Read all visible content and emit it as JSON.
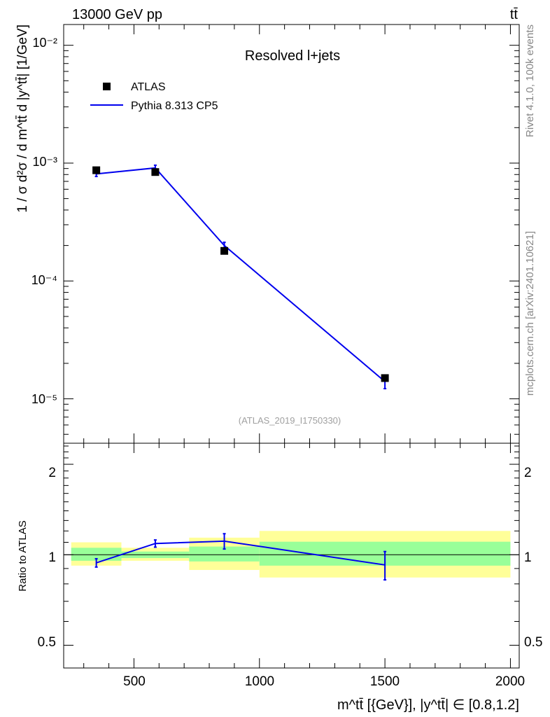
{
  "header": {
    "energy_label": "13000 GeV pp",
    "process_label": "tt̄"
  },
  "side_labels": {
    "rivet": "Rivet 4.1.0,  100k events",
    "source": "mcplots.cern.ch [arXiv:2401.10621]"
  },
  "colors": {
    "data": "#000000",
    "mc": "#0000ee",
    "band_inner": "#99ff99",
    "band_outer": "#ffff99"
  },
  "chart_data": [
    {
      "type": "scatter",
      "panel": "main",
      "title": "Resolved l+jets",
      "analysis_tag": "(ATLAS_2019_I1750330)",
      "ylabel": "1 / σ d²σ / d m^tt̄ d |y^tt̄| [1/GeV]",
      "yscale": "log",
      "ylim": [
        4.2e-06,
        0.015
      ],
      "xlim": [
        220,
        2035
      ],
      "ytick_labels": [
        "10⁻⁵",
        "10⁻⁴",
        "10⁻³",
        "10⁻²"
      ],
      "legend": {
        "placement": "top-left",
        "entries": [
          "ATLAS",
          "Pythia 8.313 CP5"
        ]
      },
      "series": [
        {
          "name": "ATLAS",
          "kind": "markers",
          "x": [
            350,
            585,
            860,
            1500
          ],
          "y": [
            0.00087,
            0.00084,
            0.00018,
            1.5e-05
          ]
        },
        {
          "name": "Pythia 8.313 CP5",
          "kind": "line",
          "x": [
            350,
            585,
            860,
            1500
          ],
          "y": [
            0.00081,
            0.00091,
            0.0002,
            1.4e-05
          ],
          "yerr": [
            4e-05,
            5e-05,
            1.3e-05,
            1.8e-06
          ]
        }
      ]
    },
    {
      "type": "line",
      "panel": "ratio",
      "ylabel": "Ratio to ATLAS",
      "xlabel": "m^tt̄ [{GeV}], |y^tt̄| ∈ [0.8,1.2]",
      "ylim": [
        0.42,
        2.35
      ],
      "xlim": [
        220,
        2035
      ],
      "xticks": [
        500,
        1000,
        1500,
        2000
      ],
      "xtick_labels": [
        "500",
        "1000",
        "1500",
        "2000"
      ],
      "yticks": [
        0.5,
        1,
        2
      ],
      "ytick_labels": [
        "0.5",
        "1",
        "2"
      ],
      "bins": [
        {
          "lo": 250,
          "hi": 450,
          "inner": [
            0.955,
            1.055
          ],
          "outer": [
            0.92,
            1.1
          ]
        },
        {
          "lo": 450,
          "hi": 720,
          "inner": [
            0.975,
            1.025
          ],
          "outer": [
            0.955,
            1.055
          ]
        },
        {
          "lo": 720,
          "hi": 1000,
          "inner": [
            0.95,
            1.065
          ],
          "outer": [
            0.89,
            1.14
          ]
        },
        {
          "lo": 1000,
          "hi": 2000,
          "inner": [
            0.92,
            1.105
          ],
          "outer": [
            0.84,
            1.2
          ]
        }
      ],
      "series": [
        {
          "name": "Pythia 8.313 CP5 / ATLAS",
          "x": [
            350,
            585,
            860,
            1500
          ],
          "y": [
            0.94,
            1.09,
            1.11,
            0.925
          ],
          "yerr": [
            0.03,
            0.03,
            0.065,
            0.1
          ]
        }
      ]
    }
  ]
}
